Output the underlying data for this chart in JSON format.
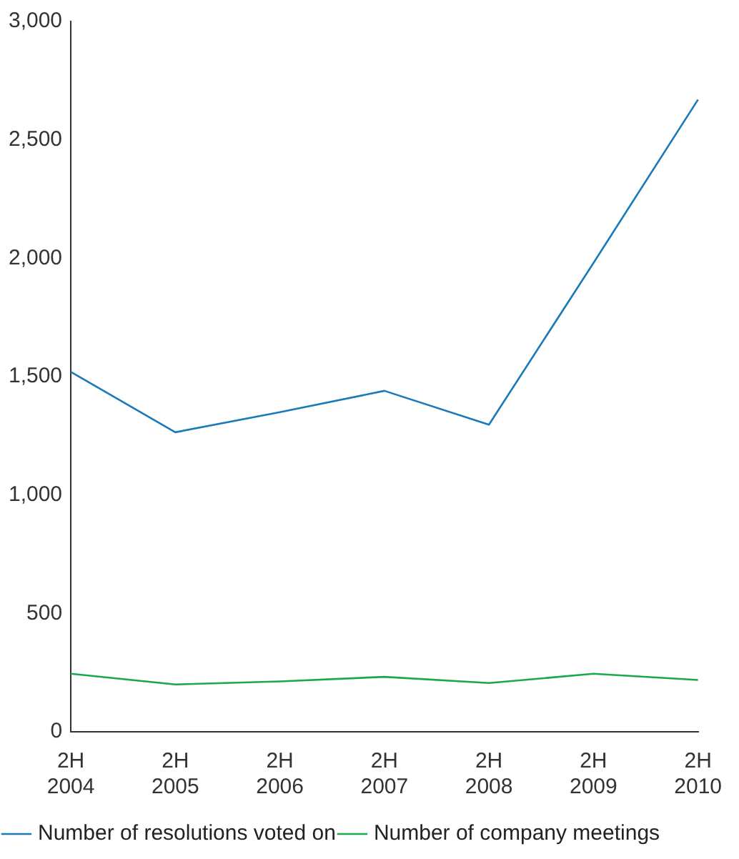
{
  "chart_data": {
    "type": "line",
    "categories": [
      "2H 2004",
      "2H 2005",
      "2H 2006",
      "2H 2007",
      "2H 2008",
      "2H 2009",
      "2H 2010"
    ],
    "series": [
      {
        "name": "Number of resolutions voted on",
        "color": "#1a7ab8",
        "values": [
          1520,
          1265,
          1350,
          1440,
          1297,
          1980,
          2670
        ]
      },
      {
        "name": "Number of company meetings",
        "color": "#1aa84a",
        "values": [
          245,
          200,
          213,
          232,
          206,
          245,
          219
        ]
      }
    ],
    "ylim": [
      0,
      3000
    ],
    "yticks": [
      {
        "value": 0,
        "label": "0"
      },
      {
        "value": 500,
        "label": "500"
      },
      {
        "value": 1000,
        "label": "1,000"
      },
      {
        "value": 1500,
        "label": "1,500"
      },
      {
        "value": 2000,
        "label": "2,000"
      },
      {
        "value": 2500,
        "label": "2,500"
      },
      {
        "value": 3000,
        "label": "3,000"
      }
    ],
    "grid": false,
    "legend": "bottom",
    "marker": "none",
    "line_style": "solid"
  }
}
